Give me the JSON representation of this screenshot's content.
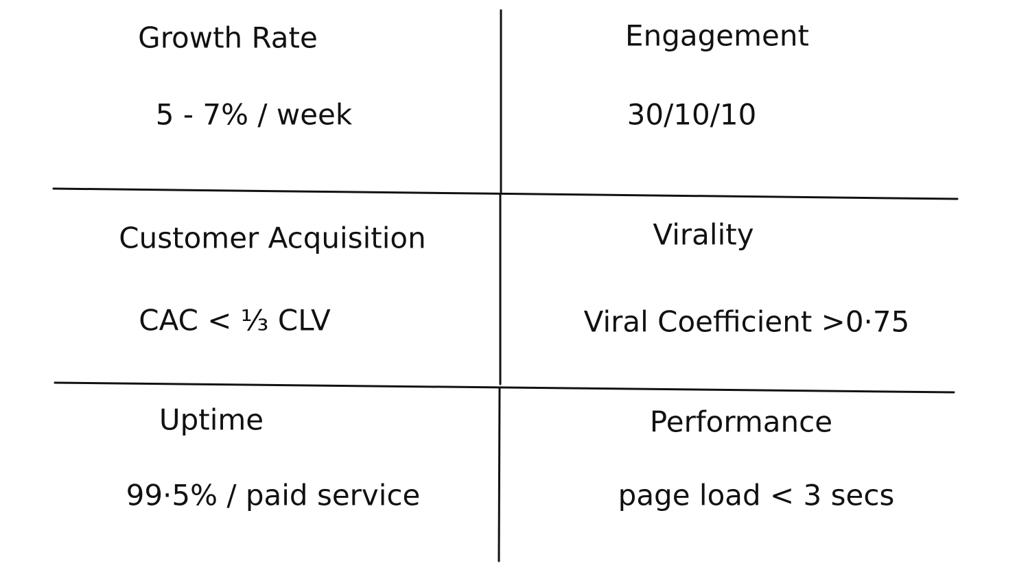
{
  "cells": [
    {
      "title": "Growth Rate",
      "text": "5 - 7% / week"
    },
    {
      "title": "Engagement",
      "text": "30/10/10"
    },
    {
      "title": "Customer Acquisition",
      "text": "CAC < ⅓ CLV"
    },
    {
      "title": "Virality",
      "text": "Viral Coefficient >0·75"
    },
    {
      "title": "Uptime",
      "text": "99·5% / paid service"
    },
    {
      "title": "Performance",
      "text": "page load < 3 secs"
    }
  ]
}
